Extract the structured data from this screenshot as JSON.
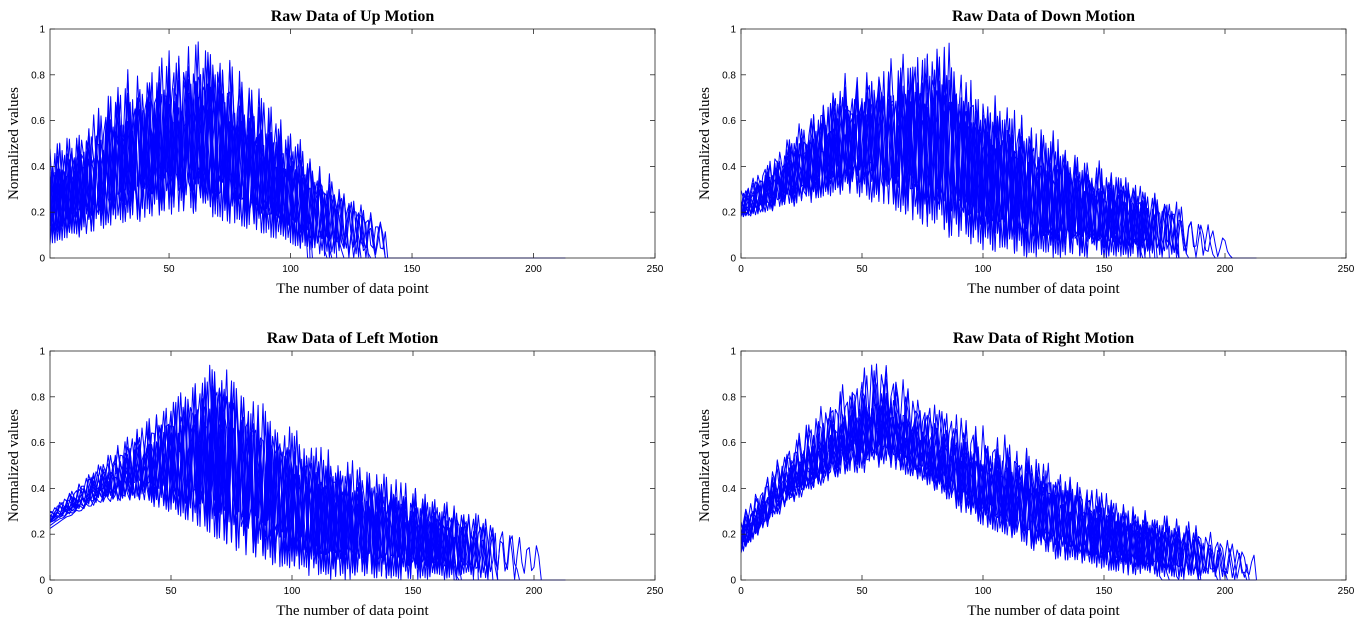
{
  "chart_data": [
    {
      "type": "line",
      "title": "Raw Data of Up Motion",
      "xlabel": "The number of data point",
      "ylabel": "Normalized values",
      "xlim": [
        1,
        250
      ],
      "ylim": [
        0,
        1
      ],
      "xticks": [
        50,
        100,
        150,
        200,
        250
      ],
      "yticks": [
        0,
        0.2,
        0.4,
        0.6,
        0.8,
        1
      ],
      "xtick_labels": [
        "50",
        "100",
        "150",
        "200",
        "250"
      ],
      "ytick_labels": [
        "0",
        "0.2",
        "0.4",
        "0.6",
        "0.8",
        "1"
      ],
      "grid": false,
      "line_color": "#0000ff",
      "envelope": {
        "upper": [
          [
            1,
            0.5
          ],
          [
            15,
            0.6
          ],
          [
            30,
            0.82
          ],
          [
            45,
            0.9
          ],
          [
            58,
            0.97
          ],
          [
            67,
            1.0
          ],
          [
            80,
            0.85
          ],
          [
            95,
            0.65
          ],
          [
            110,
            0.45
          ],
          [
            125,
            0.28
          ],
          [
            140,
            0.15
          ],
          [
            145,
            0.1
          ],
          [
            146,
            0.0
          ],
          [
            213,
            0.0
          ]
        ],
        "lower": [
          [
            1,
            0.05
          ],
          [
            20,
            0.1
          ],
          [
            40,
            0.15
          ],
          [
            60,
            0.17
          ],
          [
            80,
            0.12
          ],
          [
            100,
            0.05
          ],
          [
            115,
            0.0
          ],
          [
            213,
            0.0
          ]
        ]
      }
    },
    {
      "type": "line",
      "title": "Raw Data of Down Motion",
      "xlabel": "The number of data point",
      "ylabel": "Normalized values",
      "xlim": [
        0,
        250
      ],
      "ylim": [
        0,
        1
      ],
      "xticks": [
        0,
        50,
        100,
        150,
        200,
        250
      ],
      "yticks": [
        0,
        0.2,
        0.4,
        0.6,
        0.8,
        1
      ],
      "xtick_labels": [
        "0",
        "50",
        "100",
        "150",
        "200",
        "250"
      ],
      "ytick_labels": [
        "0",
        "0.2",
        "0.4",
        "0.6",
        "0.8",
        "1"
      ],
      "grid": false,
      "line_color": "#0000ff",
      "envelope": {
        "upper": [
          [
            0,
            0.3
          ],
          [
            20,
            0.55
          ],
          [
            40,
            0.8
          ],
          [
            60,
            0.9
          ],
          [
            75,
            0.96
          ],
          [
            82,
            1.0
          ],
          [
            100,
            0.77
          ],
          [
            125,
            0.6
          ],
          [
            150,
            0.42
          ],
          [
            175,
            0.3
          ],
          [
            195,
            0.15
          ],
          [
            203,
            0.1
          ],
          [
            204,
            0.0
          ],
          [
            213,
            0.0
          ]
        ],
        "lower": [
          [
            0,
            0.15
          ],
          [
            20,
            0.2
          ],
          [
            45,
            0.25
          ],
          [
            60,
            0.2
          ],
          [
            80,
            0.1
          ],
          [
            100,
            0.03
          ],
          [
            120,
            0.0
          ],
          [
            213,
            0.0
          ]
        ]
      }
    },
    {
      "type": "line",
      "title": "Raw Data of Left Motion",
      "xlabel": "The number of data point",
      "ylabel": "Normalized values",
      "xlim": [
        0,
        250
      ],
      "ylim": [
        0,
        1
      ],
      "xticks": [
        0,
        50,
        100,
        150,
        200,
        250
      ],
      "yticks": [
        0,
        0.2,
        0.4,
        0.6,
        0.8,
        1
      ],
      "xtick_labels": [
        "0",
        "50",
        "100",
        "150",
        "200",
        "250"
      ],
      "ytick_labels": [
        "0",
        "0.2",
        "0.4",
        "0.6",
        "0.8",
        "1"
      ],
      "grid": false,
      "line_color": "#0000ff",
      "envelope": {
        "upper": [
          [
            0,
            0.3
          ],
          [
            20,
            0.5
          ],
          [
            40,
            0.7
          ],
          [
            60,
            0.9
          ],
          [
            70,
            1.0
          ],
          [
            85,
            0.8
          ],
          [
            110,
            0.6
          ],
          [
            140,
            0.45
          ],
          [
            170,
            0.32
          ],
          [
            195,
            0.22
          ],
          [
            205,
            0.18
          ],
          [
            206,
            0.0
          ],
          [
            213,
            0.0
          ]
        ],
        "lower": [
          [
            0,
            0.22
          ],
          [
            20,
            0.3
          ],
          [
            40,
            0.3
          ],
          [
            60,
            0.2
          ],
          [
            80,
            0.1
          ],
          [
            100,
            0.03
          ],
          [
            115,
            0.0
          ],
          [
            213,
            0.0
          ]
        ]
      }
    },
    {
      "type": "line",
      "title": "Raw Data of Right Motion",
      "xlabel": "The number of data point",
      "ylabel": "Normalized values",
      "xlim": [
        0,
        250
      ],
      "ylim": [
        0,
        1
      ],
      "xticks": [
        0,
        50,
        100,
        150,
        200,
        250
      ],
      "yticks": [
        0,
        0.2,
        0.4,
        0.6,
        0.8,
        1
      ],
      "xtick_labels": [
        "0",
        "50",
        "100",
        "150",
        "200",
        "250"
      ],
      "ytick_labels": [
        "0",
        "0.2",
        "0.4",
        "0.6",
        "0.8",
        "1"
      ],
      "grid": false,
      "line_color": "#0000ff",
      "envelope": {
        "upper": [
          [
            0,
            0.3
          ],
          [
            15,
            0.55
          ],
          [
            35,
            0.8
          ],
          [
            50,
            0.95
          ],
          [
            58,
            1.0
          ],
          [
            75,
            0.82
          ],
          [
            100,
            0.7
          ],
          [
            130,
            0.52
          ],
          [
            160,
            0.35
          ],
          [
            190,
            0.24
          ],
          [
            212,
            0.12
          ],
          [
            213,
            0.0
          ]
        ],
        "lower": [
          [
            0,
            0.1
          ],
          [
            20,
            0.3
          ],
          [
            40,
            0.4
          ],
          [
            60,
            0.45
          ],
          [
            80,
            0.35
          ],
          [
            100,
            0.2
          ],
          [
            130,
            0.08
          ],
          [
            160,
            0.02
          ],
          [
            190,
            0.0
          ],
          [
            213,
            0.0
          ]
        ]
      }
    }
  ]
}
